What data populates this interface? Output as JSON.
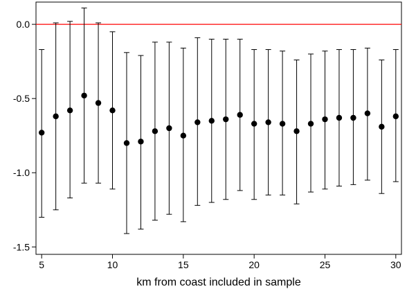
{
  "chart_data": {
    "type": "scatter",
    "title": "",
    "xlabel": "km from coast included in sample",
    "ylabel": "",
    "xlim": [
      4.6,
      30.4
    ],
    "ylim": [
      -1.55,
      0.15
    ],
    "x_ticks": [
      5,
      10,
      15,
      20,
      25,
      30
    ],
    "y_ticks": [
      0.0,
      -0.5,
      -1.0,
      -1.5
    ],
    "x_tick_labels": [
      "5",
      "10",
      "15",
      "20",
      "25",
      "30"
    ],
    "y_tick_labels": [
      "0.0",
      "-0.5",
      "-1.0",
      "-1.5"
    ],
    "reference_line": {
      "y": 0,
      "color": "#ff0000"
    },
    "grid": false,
    "series": [
      {
        "x": [
          5,
          6,
          7,
          8,
          9,
          10,
          11,
          12,
          13,
          14,
          15,
          16,
          17,
          18,
          19,
          20,
          21,
          22,
          23,
          24,
          25,
          26,
          27,
          28,
          29,
          30
        ],
        "y": [
          -0.73,
          -0.62,
          -0.58,
          -0.48,
          -0.53,
          -0.58,
          -0.8,
          -0.79,
          -0.72,
          -0.7,
          -0.75,
          -0.66,
          -0.65,
          -0.64,
          -0.61,
          -0.67,
          -0.66,
          -0.67,
          -0.72,
          -0.67,
          -0.64,
          -0.63,
          -0.63,
          -0.6,
          -0.69,
          -0.62
        ],
        "ci_upper": [
          -0.17,
          0.01,
          0.02,
          0.11,
          0.01,
          -0.05,
          -0.19,
          -0.21,
          -0.12,
          -0.12,
          -0.16,
          -0.09,
          -0.1,
          -0.1,
          -0.1,
          -0.17,
          -0.17,
          -0.18,
          -0.24,
          -0.2,
          -0.18,
          -0.17,
          -0.17,
          -0.16,
          -0.24,
          -0.17
        ],
        "ci_lower": [
          -1.3,
          -1.25,
          -1.17,
          -1.07,
          -1.07,
          -1.11,
          -1.41,
          -1.38,
          -1.32,
          -1.28,
          -1.33,
          -1.22,
          -1.2,
          -1.18,
          -1.12,
          -1.18,
          -1.15,
          -1.15,
          -1.21,
          -1.13,
          -1.11,
          -1.09,
          -1.08,
          -1.05,
          -1.14,
          -1.06
        ],
        "color": "#000000"
      }
    ]
  }
}
